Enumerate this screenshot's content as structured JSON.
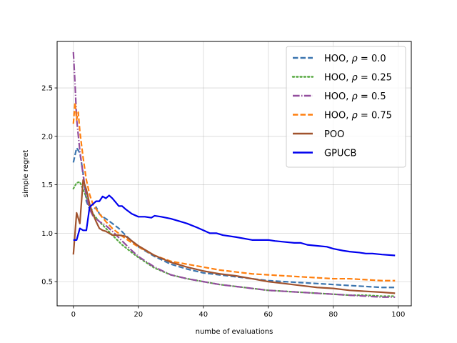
{
  "chart_data": {
    "type": "line",
    "title": "",
    "xlabel": "numbe of evaluations",
    "ylabel": "simple regret",
    "xlim": [
      -5,
      104
    ],
    "ylim": [
      0.25,
      2.98
    ],
    "xticks": [
      0,
      20,
      40,
      60,
      80,
      100
    ],
    "yticks": [
      0.5,
      1.0,
      1.5,
      2.0,
      2.5
    ],
    "xtick_labels": [
      "0",
      "20",
      "40",
      "60",
      "80",
      "100"
    ],
    "ytick_labels": [
      "0.5",
      "1.0",
      "1.5",
      "2.0",
      "2.5"
    ],
    "grid": true,
    "legend_position": "top-right",
    "series": [
      {
        "name": "HOO, ρ = 0.0",
        "label_prefix": "HOO, ",
        "label_symbol": "ρ",
        "label_suffix": " = 0.0",
        "color": "#3b75af",
        "dash": "dashed",
        "x": [
          0,
          1,
          2,
          3,
          4,
          5,
          6,
          7,
          8,
          9,
          10,
          12,
          14,
          16,
          18,
          20,
          25,
          30,
          35,
          40,
          45,
          50,
          55,
          60,
          65,
          70,
          75,
          80,
          85,
          90,
          95,
          99
        ],
        "y": [
          1.73,
          1.88,
          1.83,
          1.62,
          1.33,
          1.25,
          1.24,
          1.27,
          1.2,
          1.17,
          1.15,
          1.1,
          1.05,
          0.98,
          0.92,
          0.86,
          0.76,
          0.68,
          0.63,
          0.59,
          0.57,
          0.55,
          0.53,
          0.51,
          0.5,
          0.49,
          0.48,
          0.47,
          0.46,
          0.45,
          0.44,
          0.44
        ]
      },
      {
        "name": "HOO, ρ = 0.25",
        "label_prefix": "HOO, ",
        "label_symbol": "ρ",
        "label_suffix": " = 0.25",
        "color": "#55a83f",
        "dash": "dotted",
        "x": [
          0,
          1,
          2,
          3,
          4,
          5,
          6,
          8,
          10,
          12,
          15,
          18,
          20,
          25,
          30,
          35,
          40,
          45,
          50,
          55,
          60,
          65,
          70,
          75,
          80,
          85,
          90,
          95,
          99
        ],
        "y": [
          1.46,
          1.52,
          1.53,
          1.45,
          1.37,
          1.28,
          1.2,
          1.12,
          1.05,
          0.98,
          0.88,
          0.8,
          0.75,
          0.64,
          0.57,
          0.53,
          0.5,
          0.47,
          0.45,
          0.43,
          0.41,
          0.4,
          0.39,
          0.38,
          0.37,
          0.36,
          0.36,
          0.35,
          0.35
        ]
      },
      {
        "name": "HOO, ρ = 0.5",
        "label_prefix": "HOO, ",
        "label_symbol": "ρ",
        "label_suffix": " = 0.5",
        "color": "#934e9e",
        "dash": "dashdot",
        "x": [
          0,
          0.5,
          1,
          2,
          3,
          4,
          5,
          6,
          8,
          10,
          12,
          15,
          18,
          20,
          25,
          30,
          35,
          40,
          45,
          50,
          55,
          60,
          65,
          70,
          75,
          80,
          85,
          90,
          95,
          99
        ],
        "y": [
          2.87,
          2.55,
          2.18,
          1.85,
          1.6,
          1.38,
          1.25,
          1.18,
          1.12,
          1.08,
          1.02,
          0.92,
          0.82,
          0.76,
          0.65,
          0.57,
          0.53,
          0.5,
          0.47,
          0.45,
          0.43,
          0.41,
          0.4,
          0.39,
          0.38,
          0.37,
          0.36,
          0.35,
          0.34,
          0.34
        ]
      },
      {
        "name": "HOO, ρ = 0.75",
        "label_prefix": "HOO, ",
        "label_symbol": "ρ",
        "label_suffix": " = 0.75",
        "color": "#ff7f0e",
        "dash": "dashed",
        "x": [
          0,
          0.5,
          1,
          1.5,
          2,
          3,
          4,
          5,
          6,
          8,
          10,
          12,
          15,
          18,
          20,
          25,
          30,
          35,
          40,
          45,
          50,
          55,
          60,
          65,
          70,
          75,
          80,
          85,
          90,
          95,
          99
        ],
        "y": [
          2.13,
          2.35,
          2.17,
          2.25,
          2.05,
          1.78,
          1.55,
          1.4,
          1.3,
          1.2,
          1.12,
          1.05,
          0.97,
          0.9,
          0.86,
          0.77,
          0.71,
          0.68,
          0.65,
          0.62,
          0.6,
          0.58,
          0.57,
          0.56,
          0.55,
          0.54,
          0.53,
          0.53,
          0.52,
          0.51,
          0.51
        ]
      },
      {
        "name": "POO",
        "label_prefix": "POO",
        "label_symbol": "",
        "label_suffix": "",
        "color": "#a0522d",
        "dash": "solid",
        "x": [
          0,
          1,
          2,
          3,
          4,
          5,
          6,
          7,
          8,
          9,
          10,
          12,
          14,
          16,
          18,
          20,
          25,
          30,
          35,
          40,
          45,
          50,
          55,
          60,
          65,
          70,
          75,
          80,
          85,
          90,
          95,
          99
        ],
        "y": [
          0.78,
          1.21,
          1.1,
          1.55,
          1.45,
          1.3,
          1.2,
          1.12,
          1.05,
          1.03,
          1.02,
          0.98,
          0.98,
          0.97,
          0.92,
          0.87,
          0.77,
          0.7,
          0.65,
          0.61,
          0.58,
          0.56,
          0.53,
          0.5,
          0.48,
          0.46,
          0.44,
          0.43,
          0.41,
          0.4,
          0.39,
          0.38
        ]
      },
      {
        "name": "GPUCB",
        "label_prefix": "GPUCB",
        "label_symbol": "",
        "label_suffix": "",
        "color": "#0000ee",
        "dash": "solid",
        "x": [
          0,
          1,
          2,
          3,
          4,
          5,
          6,
          7,
          8,
          9,
          10,
          11,
          12,
          13,
          14,
          15,
          16,
          18,
          20,
          22,
          24,
          25,
          27,
          30,
          33,
          35,
          38,
          40,
          42,
          44,
          46,
          50,
          55,
          60,
          62,
          65,
          68,
          70,
          72,
          75,
          78,
          80,
          83,
          85,
          88,
          90,
          92,
          95,
          99
        ],
        "y": [
          0.93,
          0.93,
          1.05,
          1.03,
          1.03,
          1.27,
          1.3,
          1.33,
          1.33,
          1.38,
          1.36,
          1.39,
          1.36,
          1.32,
          1.28,
          1.28,
          1.25,
          1.2,
          1.17,
          1.17,
          1.16,
          1.18,
          1.17,
          1.15,
          1.12,
          1.1,
          1.06,
          1.03,
          1.0,
          1.0,
          0.98,
          0.96,
          0.93,
          0.93,
          0.92,
          0.91,
          0.9,
          0.9,
          0.88,
          0.87,
          0.86,
          0.84,
          0.82,
          0.81,
          0.8,
          0.79,
          0.79,
          0.78,
          0.77
        ]
      }
    ]
  }
}
